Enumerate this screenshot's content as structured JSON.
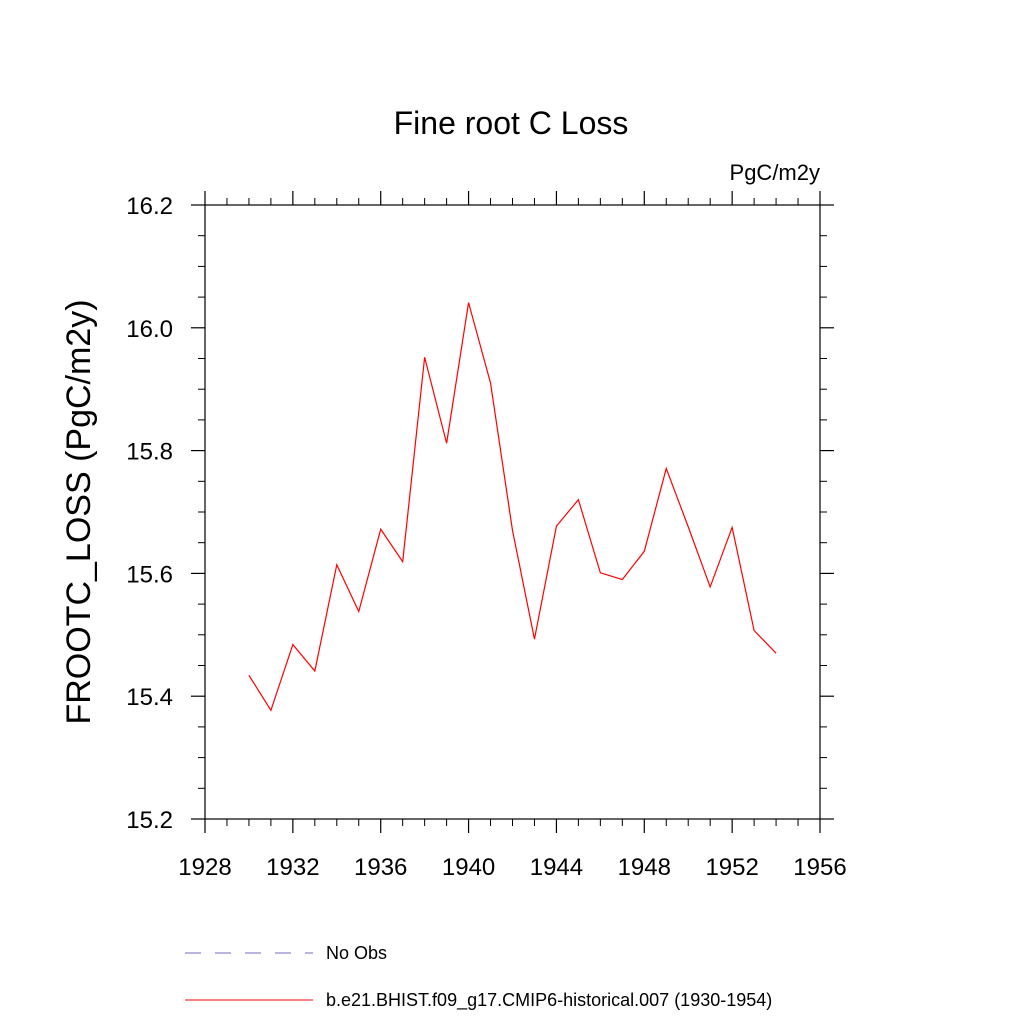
{
  "chart_data": {
    "type": "line",
    "title": "Fine root C Loss",
    "units": "PgC/m2y",
    "ylabel": "FROOTC_LOSS  (PgC/m2y)",
    "xlabel": "",
    "xlim": [
      1928,
      1956
    ],
    "ylim": [
      15.2,
      16.2
    ],
    "xticks": [
      "1928",
      "1932",
      "1936",
      "1940",
      "1944",
      "1948",
      "1952",
      "1956"
    ],
    "yticks": [
      "15.2",
      "15.4",
      "15.6",
      "15.8",
      "16.0",
      "16.2"
    ],
    "grid": false,
    "legend_position": "bottom",
    "series": [
      {
        "name": "b.e21.BHIST.f09_g17.CMIP6-historical.007 (1930-1954)",
        "color": "#ff0000",
        "style": "solid",
        "x": [
          1930,
          1931,
          1932,
          1933,
          1934,
          1935,
          1936,
          1937,
          1938,
          1939,
          1940,
          1941,
          1942,
          1943,
          1944,
          1945,
          1946,
          1947,
          1948,
          1949,
          1950,
          1951,
          1952,
          1953,
          1954
        ],
        "y": [
          15.434,
          15.377,
          15.484,
          15.441,
          15.614,
          15.538,
          15.672,
          15.619,
          15.952,
          15.812,
          16.041,
          15.91,
          15.67,
          15.493,
          15.677,
          15.72,
          15.601,
          15.59,
          15.636,
          15.771,
          15.676,
          15.578,
          15.675,
          15.507,
          15.47
        ]
      }
    ],
    "legend": [
      {
        "label": "No Obs",
        "color": "#7b68c8",
        "style": "dashed"
      },
      {
        "label": "b.e21.BHIST.f09_g17.CMIP6-historical.007 (1930-1954)",
        "color": "#ff0000",
        "style": "solid"
      }
    ]
  }
}
